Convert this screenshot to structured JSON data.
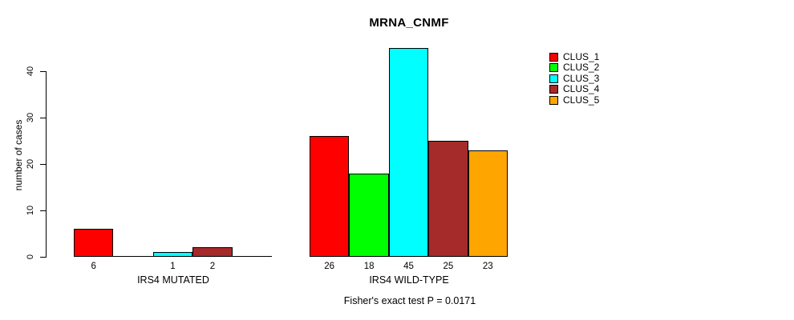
{
  "title": "MRNA_CNMF",
  "footnote": "Fisher's exact test P = 0.0171",
  "chart_data": {
    "type": "bar",
    "title": "MRNA_CNMF",
    "xlabel": "",
    "ylabel": "number of cases",
    "ylim": [
      0,
      45
    ],
    "yticks": [
      0,
      10,
      20,
      30,
      40
    ],
    "grid": false,
    "legend_position": "right-outside",
    "categories": [
      "IRS4 MUTATED",
      "IRS4 WILD-TYPE"
    ],
    "series": [
      {
        "name": "CLUS_1",
        "color": "#FF0000",
        "values": [
          6,
          26
        ]
      },
      {
        "name": "CLUS_2",
        "color": "#00FF00",
        "values": [
          0,
          18
        ]
      },
      {
        "name": "CLUS_3",
        "color": "#00FFFF",
        "values": [
          1,
          45
        ]
      },
      {
        "name": "CLUS_4",
        "color": "#A52A2A",
        "values": [
          2,
          25
        ]
      },
      {
        "name": "CLUS_5",
        "color": "#FFA500",
        "values": [
          0,
          23
        ]
      }
    ],
    "bar_value_labels": [
      [
        "6",
        "",
        "1",
        "2",
        ""
      ],
      [
        "26",
        "18",
        "45",
        "25",
        "23"
      ]
    ],
    "axis_color": "#000000",
    "bar_border_color": "#000000"
  }
}
